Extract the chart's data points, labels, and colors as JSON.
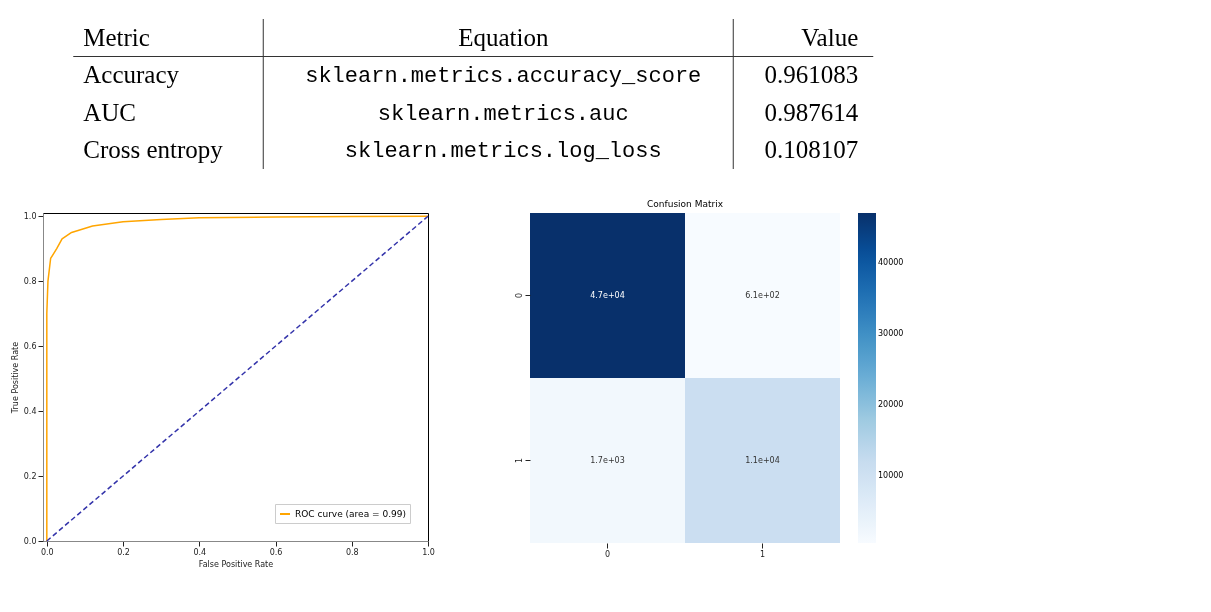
{
  "chart_data": [
    {
      "type": "other",
      "annotations": [
        "Metric",
        "Equation",
        "Value",
        "Accuracy",
        "sklearn.metrics.accuracy_score",
        "0.961083",
        "AUC",
        "sklearn.metrics.auc",
        "0.987614",
        "Cross entropy",
        "sklearn.metrics.log_loss",
        "0.108107"
      ]
    },
    {
      "type": "line",
      "xlabel": "False Positive Rate",
      "ylabel": "True Positive Rate",
      "xlim": [
        -0.01,
        1.0
      ],
      "ylim": [
        0,
        1.01
      ],
      "xticks": [
        {
          "value": 0,
          "label": "0.0"
        },
        0.2,
        0.4,
        0.6,
        0.8,
        {
          "value": 1,
          "label": "1.0"
        }
      ],
      "yticks": [
        {
          "value": 0,
          "label": "0.0"
        },
        0.2,
        0.4,
        0.6,
        0.8,
        {
          "value": 1,
          "label": "1.0"
        }
      ],
      "grid": false,
      "legend": "bottom right",
      "marker": "none",
      "series": [
        {
          "name": "ROC curve (area = 0.99)",
          "color": "#ffa500",
          "line_style": "solid",
          "x": [
            0,
            0,
            0.003,
            0.01,
            0.026,
            0.04,
            0.065,
            0.12,
            0.2,
            0.3,
            0.4,
            0.6,
            0.8,
            1
          ],
          "values": [
            0,
            0.7,
            0.8,
            0.87,
            0.9,
            0.93,
            0.95,
            0.97,
            0.983,
            0.99,
            0.995,
            0.998,
            0.999,
            1
          ]
        },
        {
          "color": "#3333aa",
          "line_style": "dashed",
          "x": [
            0,
            1
          ],
          "values": [
            0,
            1
          ]
        }
      ]
    },
    {
      "type": "heatmap",
      "title": "Confusion Matrix",
      "categories": [
        "0",
        "1"
      ],
      "y_categories": [
        "0",
        "1"
      ],
      "cells": [
        [
          47000,
          610
        ],
        [
          1700,
          11000
        ]
      ],
      "cell_labels": [
        [
          "4.7e+04",
          "6.1e+02"
        ],
        [
          "1.7e+03",
          "1.1e+04"
        ]
      ],
      "clim": [
        610,
        47000
      ],
      "cticks": [
        10000,
        20000,
        30000,
        40000
      ]
    }
  ]
}
